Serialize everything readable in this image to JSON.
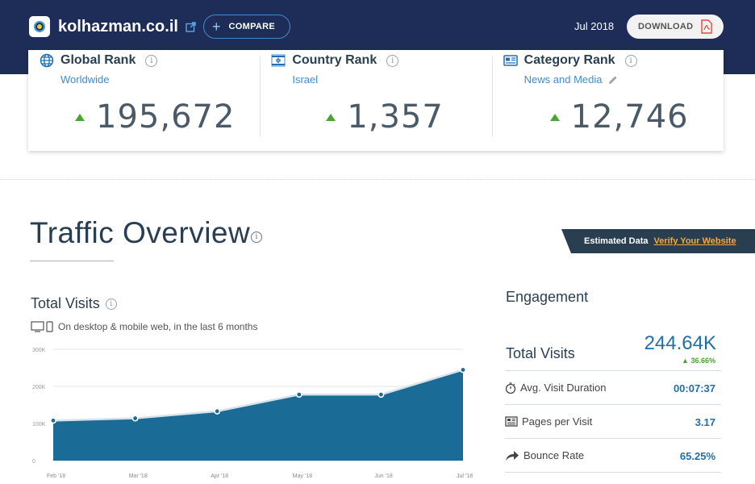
{
  "header": {
    "site_name": "kolhazman.co.il",
    "compare_label": "COMPARE",
    "date": "Jul 2018",
    "download_label": "DOWNLOAD"
  },
  "ranks": [
    {
      "title": "Global Rank",
      "subtitle": "Worldwide",
      "value": "195,672",
      "icon": "globe-icon"
    },
    {
      "title": "Country Rank",
      "subtitle": "Israel",
      "value": "1,357",
      "icon": "israel-flag-icon"
    },
    {
      "title": "Category Rank",
      "subtitle": "News and Media",
      "value": "12,746",
      "icon": "category-icon"
    }
  ],
  "traffic": {
    "title": "Traffic Overview",
    "estimated_label": "Estimated Data",
    "verify_link": "Verify Your Website"
  },
  "total_visits": {
    "title": "Total Visits",
    "subtitle": "On desktop & mobile web, in the last 6 months"
  },
  "chart_data": {
    "type": "area",
    "x": [
      "Feb '18",
      "Mar '18",
      "Apr '18",
      "May '18",
      "Jun '18",
      "Jul '18"
    ],
    "series": [
      {
        "values": [
          108000,
          114000,
          133000,
          178000,
          178000,
          244640
        ]
      }
    ],
    "y_ticks": [
      "300K",
      "200K",
      "100K",
      "0"
    ],
    "ylim": [
      0,
      300000
    ],
    "grid": true,
    "color": "#1a6b96"
  },
  "engagement": {
    "title": "Engagement",
    "total_visits_label": "Total Visits",
    "total_visits_value": "244.64K",
    "total_visits_change": "36.66%",
    "metrics": [
      {
        "label": "Avg. Visit Duration",
        "value": "00:07:37",
        "icon": "timer-icon"
      },
      {
        "label": "Pages per Visit",
        "value": "3.17",
        "icon": "pages-icon"
      },
      {
        "label": "Bounce Rate",
        "value": "65.25%",
        "icon": "bounce-arrow-icon"
      }
    ]
  }
}
